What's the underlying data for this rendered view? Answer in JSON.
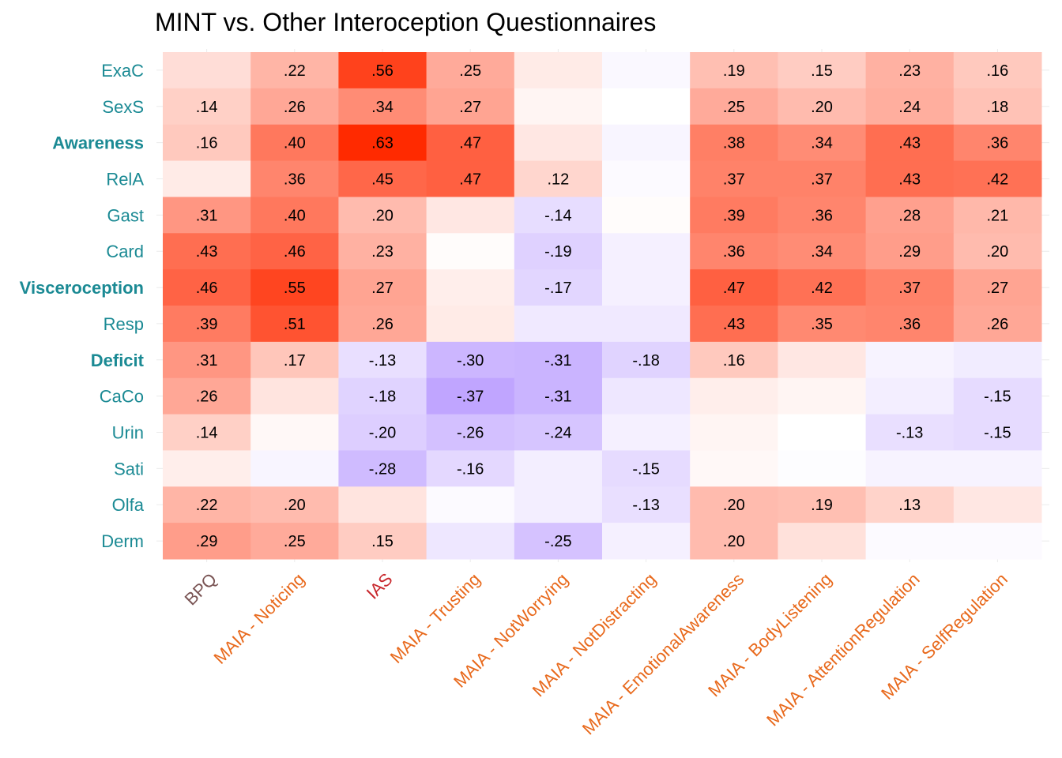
{
  "chart_data": {
    "type": "heatmap",
    "title": "MINT vs. Other Interoception Questionnaires",
    "xlabel": "",
    "ylabel": "",
    "rows": [
      {
        "label": "ExaC",
        "bold": false
      },
      {
        "label": "SexS",
        "bold": false
      },
      {
        "label": "Awareness",
        "bold": true
      },
      {
        "label": "RelA",
        "bold": false
      },
      {
        "label": "Gast",
        "bold": false
      },
      {
        "label": "Card",
        "bold": false
      },
      {
        "label": "Visceroception",
        "bold": true
      },
      {
        "label": "Resp",
        "bold": false
      },
      {
        "label": "Deficit",
        "bold": true
      },
      {
        "label": "CaCo",
        "bold": false
      },
      {
        "label": "Urin",
        "bold": false
      },
      {
        "label": "Sati",
        "bold": false
      },
      {
        "label": "Olfa",
        "bold": false
      },
      {
        "label": "Derm",
        "bold": false
      }
    ],
    "columns": [
      {
        "label": "BPQ",
        "color": "#7a5454"
      },
      {
        "label": "MAIA - Noticing",
        "color": "#e8691c"
      },
      {
        "label": "IAS",
        "color": "#c8282d"
      },
      {
        "label": "MAIA - Trusting",
        "color": "#e8691c"
      },
      {
        "label": "MAIA - NotWorrying",
        "color": "#e8691c"
      },
      {
        "label": "MAIA - NotDistracting",
        "color": "#e8691c"
      },
      {
        "label": "MAIA - EmotionalAwareness",
        "color": "#e8691c"
      },
      {
        "label": "MAIA - BodyListening",
        "color": "#e8691c"
      },
      {
        "label": "MAIA - AttentionRegulation",
        "color": "#e8691c"
      },
      {
        "label": "MAIA - SelfRegulation",
        "color": "#e8691c"
      }
    ],
    "values": [
      [
        0.1,
        0.22,
        0.56,
        0.25,
        0.06,
        -0.03,
        0.19,
        0.15,
        0.23,
        0.16
      ],
      [
        0.14,
        0.26,
        0.34,
        0.27,
        0.03,
        0.0,
        0.25,
        0.2,
        0.24,
        0.18
      ],
      [
        0.16,
        0.4,
        0.63,
        0.47,
        0.07,
        -0.04,
        0.38,
        0.34,
        0.43,
        0.36
      ],
      [
        0.06,
        0.36,
        0.45,
        0.47,
        0.12,
        -0.02,
        0.37,
        0.37,
        0.43,
        0.42
      ],
      [
        0.31,
        0.4,
        0.2,
        0.07,
        -0.14,
        0.01,
        0.39,
        0.36,
        0.28,
        0.21
      ],
      [
        0.43,
        0.46,
        0.23,
        0.01,
        -0.19,
        -0.06,
        0.36,
        0.34,
        0.29,
        0.2
      ],
      [
        0.46,
        0.55,
        0.27,
        0.05,
        -0.17,
        -0.06,
        0.47,
        0.42,
        0.37,
        0.27
      ],
      [
        0.39,
        0.51,
        0.26,
        0.06,
        -0.09,
        -0.09,
        0.43,
        0.35,
        0.36,
        0.26
      ],
      [
        0.31,
        0.17,
        -0.13,
        -0.3,
        -0.31,
        -0.18,
        0.16,
        0.07,
        -0.05,
        -0.08
      ],
      [
        0.26,
        0.08,
        -0.18,
        -0.37,
        -0.31,
        -0.1,
        0.05,
        0.03,
        -0.07,
        -0.15
      ],
      [
        0.14,
        0.02,
        -0.2,
        -0.26,
        -0.24,
        -0.06,
        0.03,
        0.0,
        -0.13,
        -0.15
      ],
      [
        0.05,
        -0.04,
        -0.28,
        -0.16,
        -0.07,
        -0.15,
        0.02,
        -0.01,
        -0.05,
        -0.05
      ],
      [
        0.22,
        0.2,
        0.08,
        -0.02,
        -0.07,
        -0.13,
        0.2,
        0.19,
        0.13,
        0.07
      ],
      [
        0.29,
        0.25,
        0.15,
        -0.1,
        -0.25,
        -0.06,
        0.2,
        0.09,
        -0.02,
        -0.02
      ]
    ],
    "labels": [
      [
        "",
        ".22",
        ".56",
        ".25",
        "",
        "",
        ".19",
        ".15",
        ".23",
        ".16"
      ],
      [
        ".14",
        ".26",
        ".34",
        ".27",
        "",
        "",
        ".25",
        ".20",
        ".24",
        ".18"
      ],
      [
        ".16",
        ".40",
        ".63",
        ".47",
        "",
        "",
        ".38",
        ".34",
        ".43",
        ".36"
      ],
      [
        "",
        ".36",
        ".45",
        ".47",
        ".12",
        "",
        ".37",
        ".37",
        ".43",
        ".42"
      ],
      [
        ".31",
        ".40",
        ".20",
        "",
        "-.14",
        "",
        ".39",
        ".36",
        ".28",
        ".21"
      ],
      [
        ".43",
        ".46",
        ".23",
        "",
        "-.19",
        "",
        ".36",
        ".34",
        ".29",
        ".20"
      ],
      [
        ".46",
        ".55",
        ".27",
        "",
        "-.17",
        "",
        ".47",
        ".42",
        ".37",
        ".27"
      ],
      [
        ".39",
        ".51",
        ".26",
        "",
        "",
        "",
        ".43",
        ".35",
        ".36",
        ".26"
      ],
      [
        ".31",
        ".17",
        "-.13",
        "-.30",
        "-.31",
        "-.18",
        ".16",
        "",
        "",
        ""
      ],
      [
        ".26",
        "",
        "-.18",
        "-.37",
        "-.31",
        "",
        "",
        "",
        "",
        "-.15"
      ],
      [
        ".14",
        "",
        "-.20",
        "-.26",
        "-.24",
        "",
        "",
        "",
        "-.13",
        "-.15"
      ],
      [
        "",
        "",
        "-.28",
        "-.16",
        "",
        "-.15",
        "",
        "",
        "",
        ""
      ],
      [
        ".22",
        ".20",
        "",
        "",
        "",
        "-.13",
        ".20",
        ".19",
        ".13",
        ""
      ],
      [
        ".29",
        ".25",
        ".15",
        "",
        "-.25",
        "",
        ".20",
        "",
        "",
        ""
      ]
    ],
    "color_scale": {
      "positive_max": "#ff2a00",
      "negative_max": "#9466ff",
      "zero": "#ffffff",
      "limit": 0.63
    },
    "row_label_color": "#1b8a94",
    "grid": true
  }
}
